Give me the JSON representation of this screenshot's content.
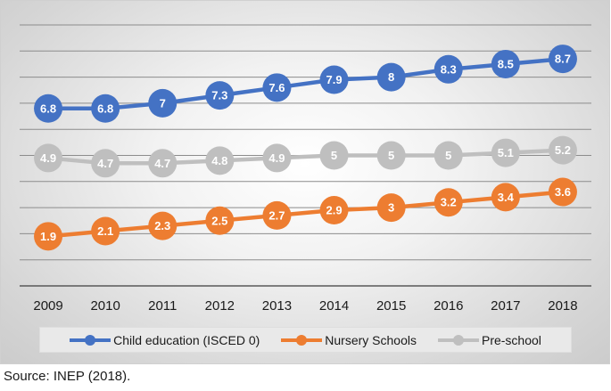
{
  "chart_data": {
    "type": "line",
    "categories": [
      "2009",
      "2010",
      "2011",
      "2012",
      "2013",
      "2014",
      "2015",
      "2016",
      "2017",
      "2018"
    ],
    "series": [
      {
        "name": "Child education (ISCED 0)",
        "color": "#4472c4",
        "values": [
          6.8,
          6.8,
          7,
          7.3,
          7.6,
          7.9,
          8,
          8.3,
          8.5,
          8.7
        ],
        "labels": [
          "6.8",
          "6.8",
          "7",
          "7.3",
          "7.6",
          "7.9",
          "8",
          "8.3",
          "8.5",
          "8.7"
        ]
      },
      {
        "name": "Nursery Schools",
        "color": "#ed7d31",
        "values": [
          1.9,
          2.1,
          2.3,
          2.5,
          2.7,
          2.9,
          3,
          3.2,
          3.4,
          3.6
        ],
        "labels": [
          "1.9",
          "2.1",
          "2.3",
          "2.5",
          "2.7",
          "2.9",
          "3",
          "3.2",
          "3.4",
          "3.6"
        ]
      },
      {
        "name": "Pre-school",
        "color": "#bfbfbf",
        "values": [
          4.9,
          4.7,
          4.7,
          4.8,
          4.9,
          5,
          5,
          5,
          5.1,
          5.2
        ],
        "labels": [
          "4.9",
          "4.7",
          "4.7",
          "4.8",
          "4.9",
          "5",
          "5",
          "5",
          "5.1",
          "5.2"
        ]
      }
    ],
    "ylim": [
      0,
      10
    ],
    "grid": true,
    "legend_position": "bottom",
    "data_labels": true
  },
  "source": "Source: INEP (2018)."
}
